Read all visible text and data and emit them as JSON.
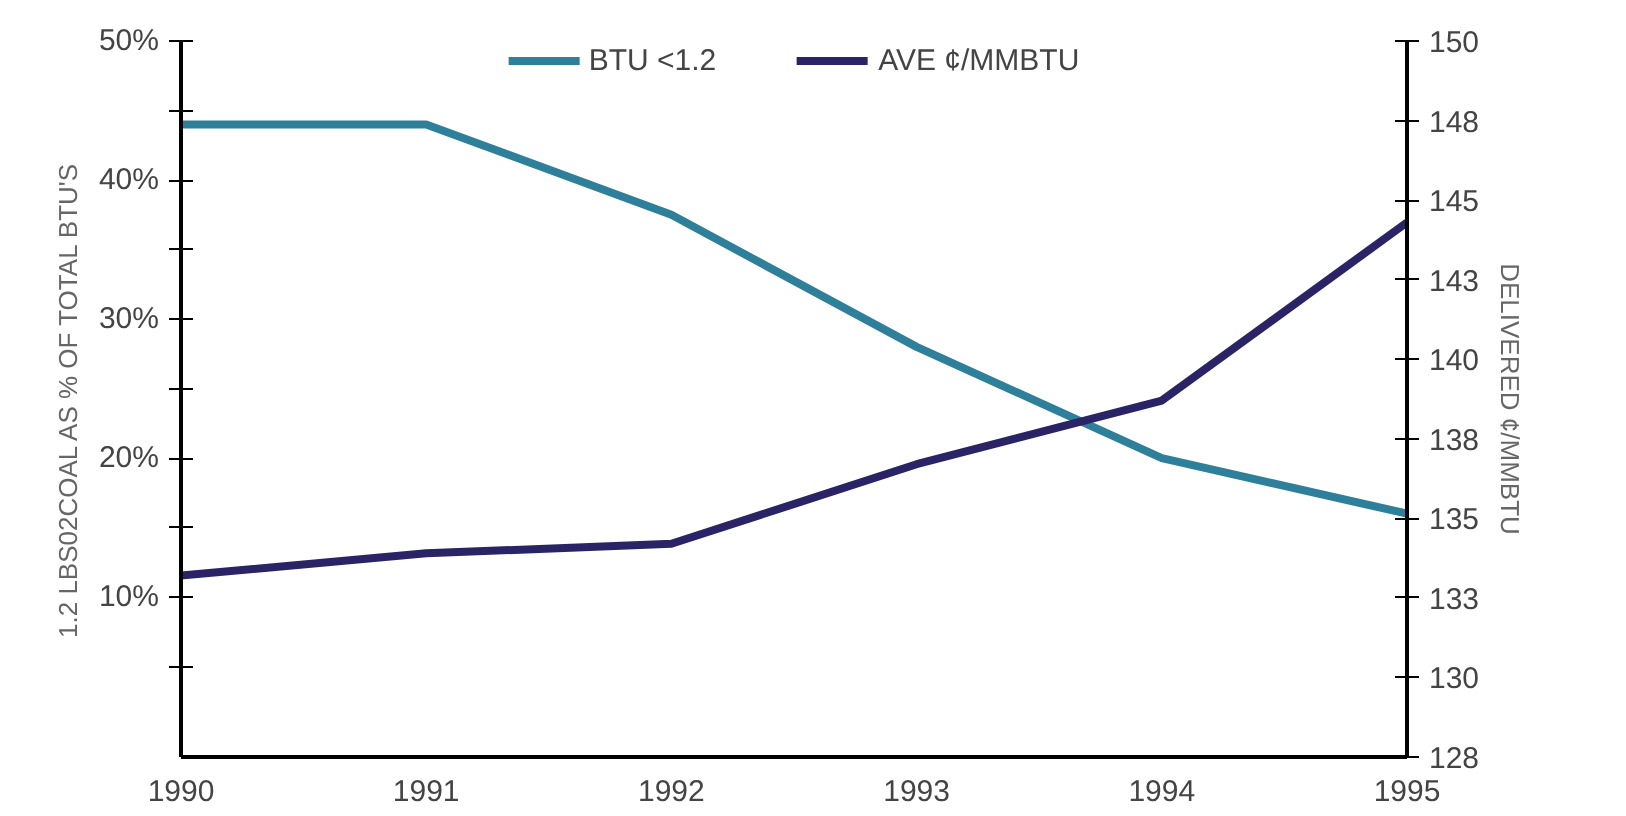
{
  "chart_data": {
    "type": "line",
    "xlabel": null,
    "ylabel": "1.2 LBS02COAL AS % OF TOTAL BTU'S",
    "y2label": "DELIVERED ¢/MMBTU",
    "x": [
      1990,
      1991,
      1992,
      1993,
      1994,
      1995
    ],
    "series": [
      {
        "name": "BTU <1.2",
        "color": "#2e7f9a",
        "values": [
          44,
          44,
          37.5,
          28,
          20,
          16
        ]
      },
      {
        "name": "AVE ¢/MMBTU",
        "color": "#2a2366",
        "axis": "y2",
        "values": [
          133.2,
          133.9,
          134.2,
          136.7,
          138.7,
          144.3
        ]
      }
    ],
    "xlim": [
      1990,
      1995
    ],
    "xticks": [
      1990,
      1991,
      1992,
      1993,
      1994,
      1995
    ],
    "ylim": [
      -1.5,
      50
    ],
    "yticks": [
      {
        "value": 5,
        "label": null
      },
      {
        "value": 10,
        "label": "10%"
      },
      {
        "value": 15,
        "label": null
      },
      {
        "value": 20,
        "label": "20%"
      },
      {
        "value": 25,
        "label": null
      },
      {
        "value": 30,
        "label": "30%"
      },
      {
        "value": 35,
        "label": null
      },
      {
        "value": 40,
        "label": "40%"
      },
      {
        "value": 45,
        "label": null
      },
      {
        "value": 50,
        "label": "50%"
      }
    ],
    "y2lim": [
      127.5,
      150
    ],
    "y2ticks": [
      {
        "value": 127.5,
        "label": "128"
      },
      {
        "value": 130,
        "label": "130"
      },
      {
        "value": 132.5,
        "label": "133"
      },
      {
        "value": 135,
        "label": "135"
      },
      {
        "value": 137.5,
        "label": "138"
      },
      {
        "value": 140,
        "label": "140"
      },
      {
        "value": 142.5,
        "label": "143"
      },
      {
        "value": 145,
        "label": "145"
      },
      {
        "value": 147.5,
        "label": "148"
      },
      {
        "value": 150,
        "label": "150"
      }
    ],
    "grid": false,
    "legend": "top",
    "line_style": "solid",
    "marker": "none"
  }
}
